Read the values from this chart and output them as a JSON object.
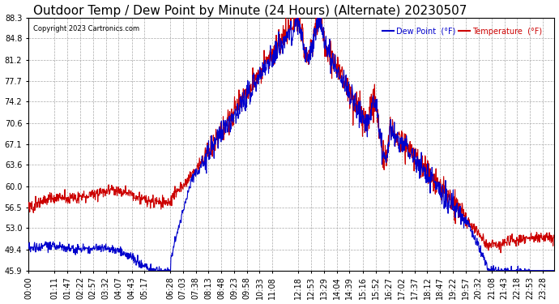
{
  "title": "Outdoor Temp / Dew Point by Minute (24 Hours) (Alternate) 20230507",
  "copyright": "Copyright 2023 Cartronics.com",
  "legend_dew": "Dew Point  (°F)",
  "legend_temp": "Temperature  (°F)",
  "yticks": [
    45.9,
    49.4,
    53.0,
    56.5,
    60.0,
    63.6,
    67.1,
    70.6,
    74.2,
    77.7,
    81.2,
    84.8,
    88.3
  ],
  "ymin": 45.9,
  "ymax": 88.3,
  "bg_color": "#ffffff",
  "grid_color": "#aaaaaa",
  "temp_color": "#cc0000",
  "dew_color": "#0000cc",
  "title_fontsize": 11,
  "axis_fontsize": 7,
  "num_minutes": 1440,
  "xtick_labels": [
    "00:00",
    "01:11",
    "01:47",
    "02:22",
    "02:57",
    "03:32",
    "04:07",
    "04:43",
    "05:17",
    "06:28",
    "07:03",
    "07:38",
    "08:13",
    "08:48",
    "09:23",
    "09:58",
    "10:33",
    "11:08",
    "12:18",
    "12:53",
    "13:29",
    "14:04",
    "14:39",
    "15:16",
    "15:52",
    "16:27",
    "17:02",
    "17:37",
    "18:12",
    "18:47",
    "19:22",
    "19:57",
    "20:32",
    "21:08",
    "21:43",
    "22:18",
    "22:53",
    "23:28"
  ]
}
